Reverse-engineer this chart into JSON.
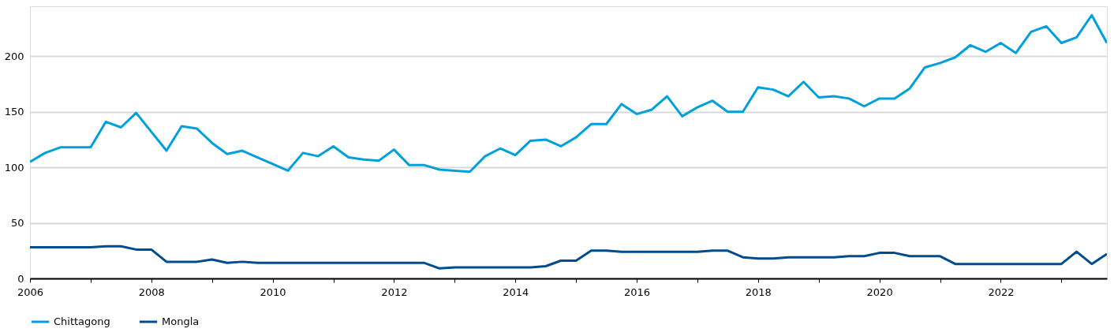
{
  "chart_data": {
    "type": "line",
    "x": [
      2006.0,
      2006.25,
      2006.5,
      2006.75,
      2007.0,
      2007.25,
      2007.5,
      2007.75,
      2008.0,
      2008.25,
      2008.5,
      2008.75,
      2009.0,
      2009.25,
      2009.5,
      2009.75,
      2010.0,
      2010.25,
      2010.5,
      2010.75,
      2011.0,
      2011.25,
      2011.5,
      2011.75,
      2012.0,
      2012.25,
      2012.5,
      2012.75,
      2013.0,
      2013.25,
      2013.5,
      2013.75,
      2014.0,
      2014.25,
      2014.5,
      2014.75,
      2015.0,
      2015.25,
      2015.5,
      2015.75,
      2016.0,
      2016.25,
      2016.5,
      2016.75,
      2017.0,
      2017.25,
      2017.5,
      2017.75,
      2018.0,
      2018.25,
      2018.5,
      2018.75,
      2019.0,
      2019.25,
      2019.5,
      2019.75,
      2020.0,
      2020.25,
      2020.5,
      2020.75,
      2021.0,
      2021.25,
      2021.5,
      2021.75,
      2022.0,
      2022.25,
      2022.5,
      2022.75,
      2023.0,
      2023.25,
      2023.5,
      2023.75
    ],
    "series": [
      {
        "name": "Chittagong",
        "color": "#00a0dc",
        "values": [
          105,
          113,
          118,
          118,
          118,
          141,
          136,
          149,
          132,
          115,
          137,
          135,
          122,
          112,
          115,
          109,
          103,
          97,
          113,
          110,
          119,
          109,
          107,
          106,
          116,
          102,
          102,
          98,
          97,
          96,
          110,
          117,
          111,
          124,
          125,
          119,
          127,
          139,
          139,
          157,
          148,
          152,
          164,
          146,
          154,
          160,
          150,
          150,
          172,
          170,
          164,
          177,
          163,
          164,
          162,
          155,
          162,
          162,
          171,
          190,
          194,
          199,
          210,
          204,
          212,
          203,
          222,
          227,
          212,
          217,
          237,
          212
        ]
      },
      {
        "name": "Mongla",
        "color": "#004c8c",
        "values": [
          28,
          28,
          28,
          28,
          28,
          29,
          29,
          26,
          26,
          15,
          15,
          15,
          17,
          14,
          15,
          14,
          14,
          14,
          14,
          14,
          14,
          14,
          14,
          14,
          14,
          14,
          14,
          9,
          10,
          10,
          10,
          10,
          10,
          10,
          11,
          16,
          16,
          25,
          25,
          24,
          24,
          24,
          24,
          24,
          24,
          25,
          25,
          19,
          18,
          18,
          19,
          19,
          19,
          19,
          20,
          20,
          23,
          23,
          20,
          20,
          20,
          13,
          13,
          13,
          13,
          13,
          13,
          13,
          13,
          24,
          13,
          22
        ]
      }
    ],
    "xlim": [
      2006,
      2023.75
    ],
    "xticks": [
      2006,
      {
        "value": 2007,
        "label": null
      },
      2008,
      {
        "value": 2009,
        "label": null
      },
      2010,
      {
        "value": 2011,
        "label": null
      },
      2012,
      {
        "value": 2013,
        "label": null
      },
      2014,
      {
        "value": 2015,
        "label": null
      },
      2016,
      {
        "value": 2017,
        "label": null
      },
      2018,
      {
        "value": 2019,
        "label": null
      },
      2020,
      {
        "value": 2021,
        "label": null
      },
      2022,
      {
        "value": 2023,
        "label": null
      }
    ],
    "ylim": [
      0,
      245
    ],
    "yticks": [
      0,
      50,
      100,
      150,
      200
    ],
    "grid": "y",
    "legend": "bottom",
    "marker": "none",
    "line_style": "solid"
  }
}
